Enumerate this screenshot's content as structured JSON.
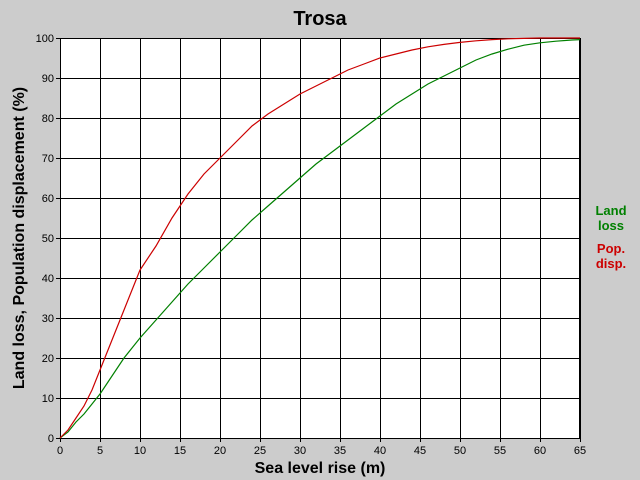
{
  "chart_data": {
    "type": "line",
    "title": "Trosa",
    "xlabel": "Sea level rise (m)",
    "ylabel": "Land loss, Population displacement (%)",
    "xlim": [
      0,
      65
    ],
    "ylim": [
      0,
      100
    ],
    "x_ticks": [
      "0",
      "5",
      "10",
      "15",
      "20",
      "25",
      "30",
      "35",
      "40",
      "45",
      "50",
      "55",
      "60",
      "65"
    ],
    "y_ticks": [
      "0",
      "10",
      "20",
      "30",
      "40",
      "50",
      "60",
      "70",
      "80",
      "90",
      "100"
    ],
    "grid": true,
    "legend_position": "right",
    "background": "#ffffff",
    "series": [
      {
        "name": "Land loss",
        "legend_lines": [
          "Land",
          "loss"
        ],
        "color": "#008000",
        "x": [
          0,
          1,
          2,
          3,
          4,
          5,
          6,
          7,
          8,
          9,
          10,
          12,
          14,
          16,
          18,
          20,
          22,
          24,
          26,
          28,
          30,
          32,
          34,
          36,
          38,
          40,
          42,
          44,
          46,
          48,
          50,
          52,
          54,
          56,
          58,
          60,
          62,
          64,
          65
        ],
        "values": [
          0,
          1.5,
          4,
          6,
          8.5,
          11,
          14,
          17,
          20,
          22.5,
          25,
          29.5,
          34,
          38.5,
          42.5,
          46.5,
          50.5,
          54.5,
          58,
          61.5,
          65,
          68.5,
          71.5,
          74.5,
          77.5,
          80.5,
          83.5,
          86,
          88.5,
          90.5,
          92.5,
          94.5,
          96,
          97.2,
          98.2,
          98.8,
          99.2,
          99.5,
          99.6
        ]
      },
      {
        "name": "Pop. disp.",
        "legend_lines": [
          "Pop.",
          "disp."
        ],
        "color": "#cc0000",
        "x": [
          0,
          1,
          2,
          3,
          4,
          5,
          6,
          7,
          8,
          9,
          10,
          12,
          14,
          16,
          18,
          20,
          22,
          24,
          26,
          28,
          30,
          32,
          34,
          36,
          38,
          40,
          42,
          44,
          46,
          48,
          50,
          52,
          54,
          56,
          58,
          60,
          62,
          64,
          65
        ],
        "values": [
          0,
          2,
          5,
          8,
          12,
          17,
          22,
          27,
          32,
          37,
          42,
          48,
          55,
          61,
          66,
          70,
          74,
          78,
          81,
          83.5,
          86,
          88,
          90,
          92,
          93.5,
          95,
          96,
          97,
          97.8,
          98.4,
          98.9,
          99.3,
          99.6,
          99.8,
          99.9,
          100,
          100,
          100,
          100
        ]
      }
    ]
  }
}
